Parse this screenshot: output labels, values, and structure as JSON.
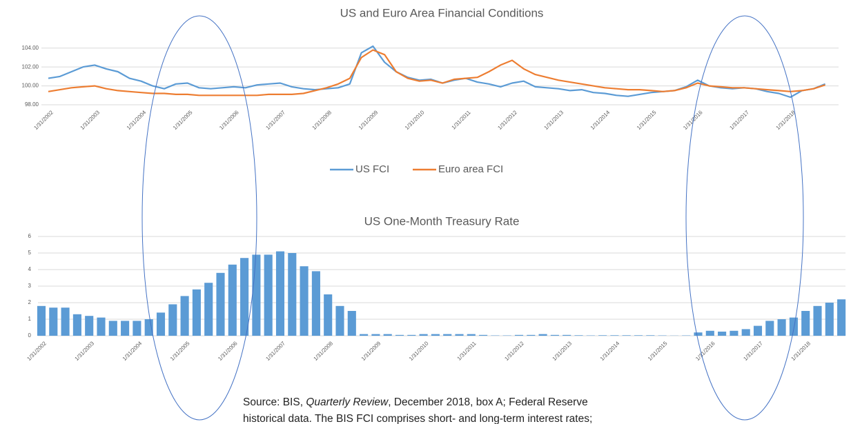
{
  "chart_data": [
    {
      "type": "line",
      "title": "US and Euro Area Financial Conditions",
      "categories": [
        "1/31/2002",
        null,
        null,
        null,
        "1/31/2003",
        null,
        null,
        null,
        "1/31/2004",
        null,
        null,
        null,
        "1/31/2005",
        null,
        null,
        null,
        "1/31/2006",
        null,
        null,
        null,
        "1/31/2007",
        null,
        null,
        null,
        "1/31/2008",
        null,
        null,
        null,
        "1/31/2009",
        null,
        null,
        null,
        "1/31/2010",
        null,
        null,
        null,
        "1/31/2011",
        null,
        null,
        null,
        "1/31/2012",
        null,
        null,
        null,
        "1/31/2013",
        null,
        null,
        null,
        "1/31/2014",
        null,
        null,
        null,
        "1/31/2015",
        null,
        null,
        null,
        "1/31/2016",
        null,
        null,
        null,
        "1/31/2017",
        null,
        null,
        null,
        "1/31/2018",
        null,
        null,
        null
      ],
      "series": [
        {
          "name": "US FCI",
          "color": "#5b9bd5",
          "values": [
            100.8,
            101.0,
            101.5,
            102.0,
            102.2,
            101.8,
            101.5,
            100.8,
            100.5,
            100.0,
            99.7,
            100.2,
            100.3,
            99.8,
            99.7,
            99.8,
            99.9,
            99.8,
            100.1,
            100.2,
            100.3,
            99.9,
            99.7,
            99.6,
            99.7,
            99.8,
            100.2,
            103.5,
            104.2,
            102.5,
            101.5,
            100.9,
            100.6,
            100.7,
            100.3,
            100.6,
            100.8,
            100.4,
            100.2,
            99.9,
            100.3,
            100.5,
            99.9,
            99.8,
            99.7,
            99.5,
            99.6,
            99.3,
            99.2,
            99.0,
            98.9,
            99.1,
            99.3,
            99.4,
            99.5,
            99.9,
            100.6,
            100.0,
            99.8,
            99.7,
            99.8,
            99.7,
            99.4,
            99.2,
            98.8,
            99.5,
            99.7,
            100.2
          ]
        },
        {
          "name": "Euro area FCI",
          "color": "#ed7d31",
          "values": [
            99.4,
            99.6,
            99.8,
            99.9,
            100.0,
            99.7,
            99.5,
            99.4,
            99.3,
            99.2,
            99.2,
            99.1,
            99.1,
            99.0,
            99.0,
            99.0,
            99.0,
            99.0,
            99.0,
            99.1,
            99.1,
            99.1,
            99.2,
            99.5,
            99.8,
            100.2,
            100.8,
            103.0,
            103.8,
            103.3,
            101.5,
            100.8,
            100.5,
            100.6,
            100.3,
            100.7,
            100.8,
            100.9,
            101.5,
            102.2,
            102.7,
            101.8,
            101.2,
            100.9,
            100.6,
            100.4,
            100.2,
            100.0,
            99.8,
            99.7,
            99.6,
            99.6,
            99.5,
            99.4,
            99.5,
            99.8,
            100.3,
            100.0,
            99.9,
            99.8,
            99.8,
            99.7,
            99.6,
            99.5,
            99.4,
            99.5,
            99.7,
            100.1
          ]
        }
      ],
      "ylim": [
        98,
        105
      ],
      "yticks": [
        {
          "value": 98,
          "label": "98.00"
        },
        {
          "value": 100,
          "label": "100.00"
        },
        {
          "value": 102,
          "label": "102.00"
        },
        {
          "value": 104,
          "label": "104.00"
        }
      ],
      "grid": true,
      "legend": "bottom"
    },
    {
      "type": "bar",
      "title": "US One-Month Treasury Rate",
      "color": "#5b9bd5",
      "categories": [
        "1/31/2002",
        null,
        null,
        null,
        "1/31/2003",
        null,
        null,
        null,
        "1/31/2004",
        null,
        null,
        null,
        "1/31/2005",
        null,
        null,
        null,
        "1/31/2006",
        null,
        null,
        null,
        "1/31/2007",
        null,
        null,
        null,
        "1/31/2008",
        null,
        null,
        null,
        "1/31/2009",
        null,
        null,
        null,
        "1/31/2010",
        null,
        null,
        null,
        "1/31/2011",
        null,
        null,
        null,
        "1/31/2012",
        null,
        null,
        null,
        "1/31/2013",
        null,
        null,
        null,
        "1/31/2014",
        null,
        null,
        null,
        "1/31/2015",
        null,
        null,
        null,
        "1/31/2016",
        null,
        null,
        null,
        "1/31/2017",
        null,
        null,
        null,
        "1/31/2018",
        null,
        null,
        null
      ],
      "values": [
        1.8,
        1.7,
        1.7,
        1.3,
        1.2,
        1.1,
        0.9,
        0.9,
        0.9,
        1.0,
        1.4,
        1.9,
        2.4,
        2.8,
        3.2,
        3.8,
        4.3,
        4.7,
        4.9,
        4.9,
        5.1,
        5.0,
        4.2,
        3.9,
        2.5,
        1.8,
        1.5,
        0.1,
        0.1,
        0.1,
        0.05,
        0.05,
        0.1,
        0.1,
        0.1,
        0.1,
        0.1,
        0.05,
        0.02,
        0.02,
        0.05,
        0.05,
        0.1,
        0.05,
        0.05,
        0.03,
        0.02,
        0.03,
        0.03,
        0.03,
        0.03,
        0.03,
        0.02,
        0.01,
        0.02,
        0.2,
        0.3,
        0.25,
        0.3,
        0.4,
        0.6,
        0.9,
        1.0,
        1.1,
        1.5,
        1.8,
        2.0,
        2.2
      ],
      "ylim": [
        0,
        6
      ],
      "yticks": [
        0,
        1,
        2,
        3,
        4,
        5,
        6
      ],
      "grid": true
    }
  ],
  "caption": {
    "line1": [
      "Source: BIS, ",
      "Quarterly Review",
      ", December 2018, box A; Federal Reserve"
    ],
    "line2": "historical data. The BIS FCI comprises short- and long-term interest rates;"
  }
}
